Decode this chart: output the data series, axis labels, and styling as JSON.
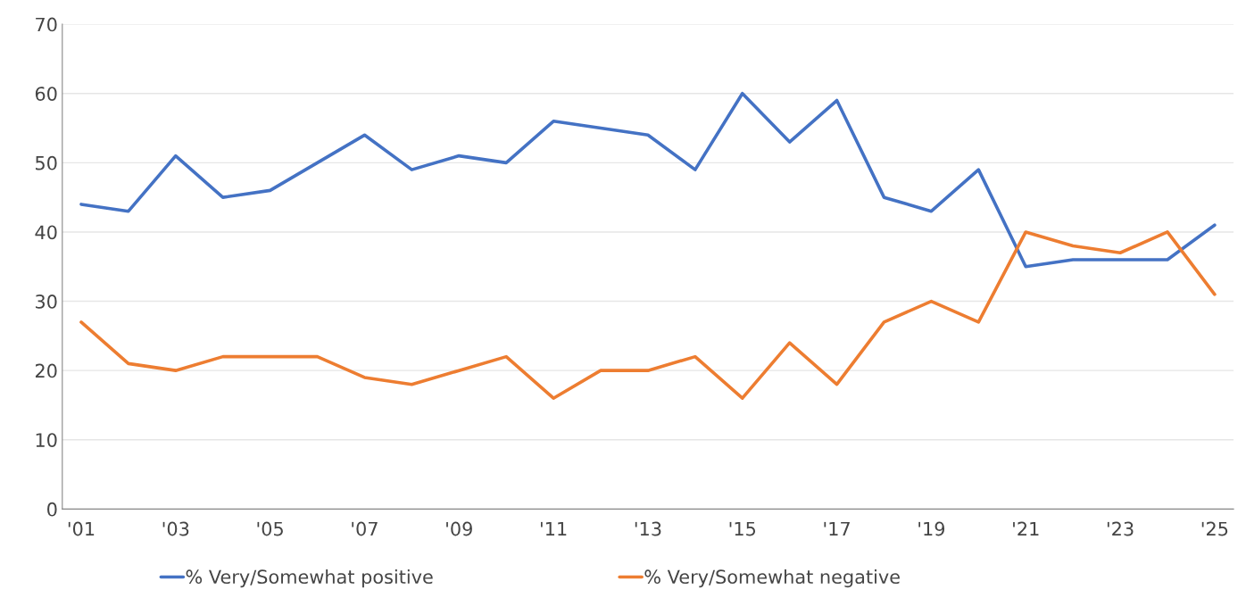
{
  "chart_data": {
    "type": "line",
    "categories": [
      "'01",
      null,
      "'03",
      null,
      "'05",
      null,
      "'07",
      null,
      "'09",
      null,
      "'11",
      null,
      "'13",
      null,
      "'15",
      null,
      "'17",
      null,
      "'19",
      null,
      "'21",
      null,
      "'23",
      null,
      "'25"
    ],
    "series": [
      {
        "name": "% Very/Somewhat positive",
        "color": "#4472c4",
        "values": [
          44,
          43,
          51,
          45,
          46,
          50,
          54,
          49,
          51,
          50,
          56,
          55,
          54,
          49,
          60,
          53,
          59,
          45,
          43,
          49,
          35,
          36,
          36,
          36,
          41
        ]
      },
      {
        "name": "% Very/Somewhat negative",
        "color": "#ed7d31",
        "values": [
          27,
          21,
          20,
          22,
          22,
          22,
          19,
          18,
          20,
          22,
          16,
          20,
          20,
          22,
          16,
          24,
          18,
          27,
          30,
          27,
          40,
          38,
          37,
          40,
          31
        ]
      }
    ],
    "ylim": [
      0,
      70
    ],
    "yticks": [
      0,
      10,
      20,
      30,
      40,
      50,
      60,
      70
    ],
    "grid": "y",
    "legend": "bottom",
    "marker": "none",
    "line_style": "solid"
  }
}
